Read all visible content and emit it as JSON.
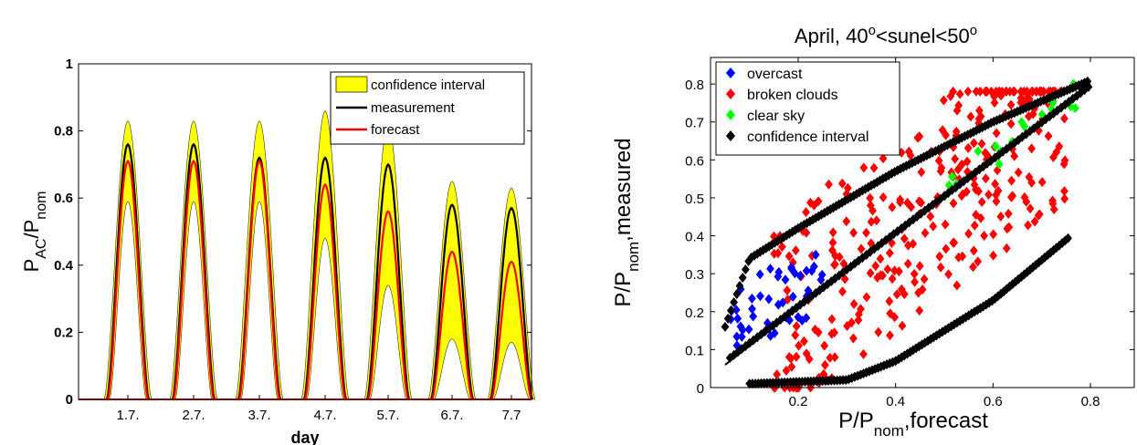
{
  "chart_data": [
    {
      "type": "area",
      "xlabel": "day",
      "ylabel": {
        "main": "P",
        "sub1": "AC",
        "mid": "/P",
        "sub2": "nom"
      },
      "ylim": [
        0,
        1
      ],
      "yticks": [
        "0",
        "0.2",
        "0.4",
        "0.6",
        "0.8",
        "1"
      ],
      "categories": [
        "1.7.",
        "2.7.",
        "3.7.",
        "4.7.",
        "5.7.",
        "6.7.",
        "7.7"
      ],
      "legend": {
        "position": "top-right",
        "entries": [
          "confidence interval",
          "measurement",
          "forecast"
        ]
      },
      "colors": {
        "confidence": "#ffff00",
        "measurement": "#000000",
        "forecast": "#ff0000"
      },
      "series": [
        {
          "name": "confidence interval",
          "upper": [
            0.83,
            0.83,
            0.83,
            0.86,
            0.82,
            0.65,
            0.63
          ],
          "lower": [
            0.59,
            0.59,
            0.59,
            0.48,
            0.34,
            0.18,
            0.17
          ]
        },
        {
          "name": "measurement",
          "peaks": [
            0.76,
            0.76,
            0.72,
            0.72,
            0.7,
            0.58,
            0.57
          ]
        },
        {
          "name": "forecast",
          "peaks": [
            0.71,
            0.71,
            0.71,
            0.64,
            0.56,
            0.44,
            0.41
          ]
        }
      ]
    },
    {
      "type": "scatter",
      "title": {
        "pre": "April, 40",
        "sup1": "o",
        "mid": "<sunel<50",
        "sup2": "o"
      },
      "xlabel": {
        "main": "P/P",
        "sub": "nom",
        "rest": ",forecast"
      },
      "ylabel": {
        "main": "P/P",
        "sub": "nom",
        "rest": ",measured"
      },
      "xlim": [
        0.02,
        0.89
      ],
      "ylim": [
        0,
        0.87
      ],
      "xticks": [
        "0.2",
        "0.4",
        "0.6",
        "0.8"
      ],
      "yticks": [
        "0",
        "0.1",
        "0.2",
        "0.3",
        "0.4",
        "0.5",
        "0.6",
        "0.7",
        "0.8"
      ],
      "legend": {
        "position": "top-left",
        "entries": [
          "overcast",
          "broken clouds",
          "clear sky",
          "confidence interval"
        ]
      },
      "colors": {
        "overcast": "#0000ff",
        "broken clouds": "#ff0000",
        "clear sky": "#00ff00",
        "confidence interval": "#000000"
      },
      "series": [
        {
          "name": "overcast",
          "x_range": [
            0.05,
            0.25
          ],
          "y_range": [
            0.05,
            0.35
          ]
        },
        {
          "name": "broken clouds",
          "x_range": [
            0.15,
            0.75
          ],
          "y_range": [
            0,
            0.78
          ]
        },
        {
          "name": "clear sky",
          "x_range": [
            0.48,
            0.79
          ],
          "y_range": [
            0.44,
            0.8
          ]
        },
        {
          "name": "confidence interval",
          "upper": [
            [
              0.05,
              0.16
            ],
            [
              0.1,
              0.34
            ],
            [
              0.2,
              0.42
            ],
            [
              0.4,
              0.57
            ],
            [
              0.6,
              0.7
            ],
            [
              0.8,
              0.81
            ]
          ],
          "lower": [
            [
              0.1,
              0.01
            ],
            [
              0.3,
              0.02
            ],
            [
              0.4,
              0.07
            ],
            [
              0.6,
              0.23
            ],
            [
              0.76,
              0.4
            ]
          ]
        }
      ]
    }
  ]
}
